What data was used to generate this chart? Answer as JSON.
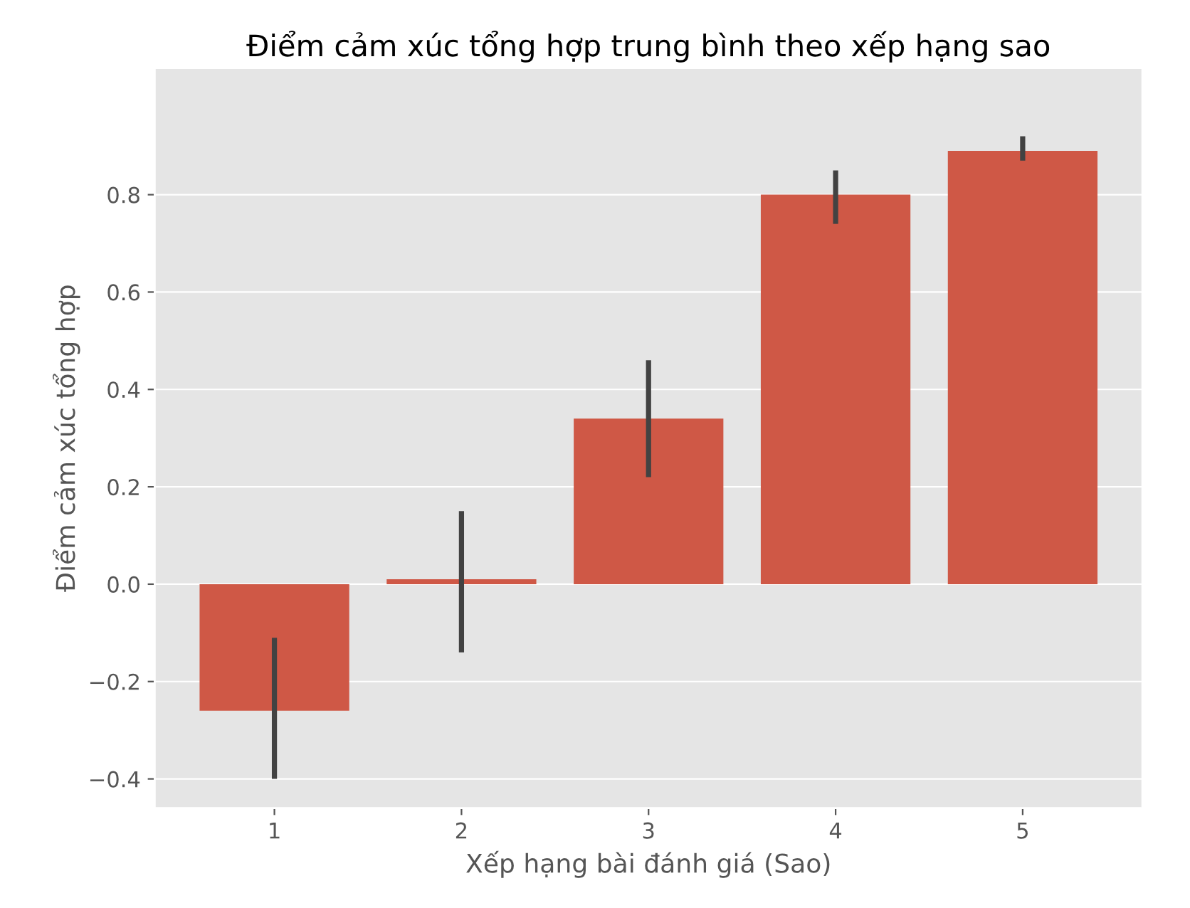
{
  "chart_data": {
    "type": "bar",
    "title": "Điểm cảm xúc tổng hợp trung bình theo xếp hạng sao",
    "xlabel": "Xếp hạng bài đánh giá (Sao)",
    "ylabel": "Điểm cảm xúc tổng hợp",
    "categories": [
      "1",
      "2",
      "3",
      "4",
      "5"
    ],
    "values": [
      -0.26,
      0.01,
      0.34,
      0.8,
      0.89
    ],
    "errors": [
      [
        -0.4,
        -0.11
      ],
      [
        -0.14,
        0.15
      ],
      [
        0.22,
        0.46
      ],
      [
        0.74,
        0.85
      ],
      [
        0.87,
        0.92
      ]
    ],
    "color": "#cf5846",
    "ylim": [
      -0.46,
      1.06
    ],
    "yticks": [
      {
        "value": -0.4,
        "label": "−0.4"
      },
      {
        "value": -0.2,
        "label": "−0.2"
      },
      {
        "value": 0,
        "label": "0.0"
      },
      0.2,
      0.4,
      0.6,
      0.8
    ],
    "grid": "y"
  }
}
